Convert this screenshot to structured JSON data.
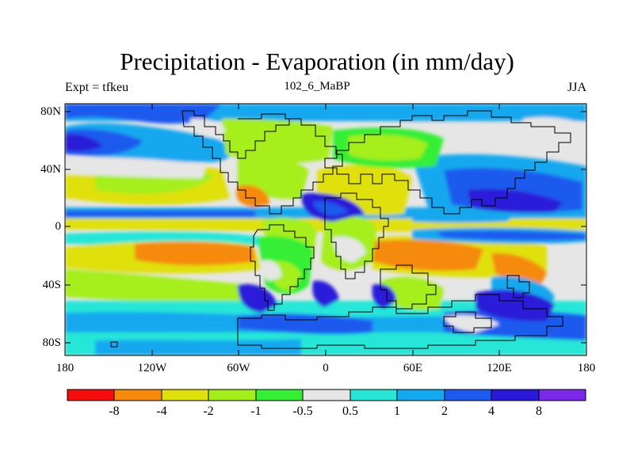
{
  "header": {
    "title": "Precipitation - Evaporation (in mm/day)",
    "left_label": "Expt = tfkeu",
    "center_label": "102_6_MaBP",
    "right_label": "JJA"
  },
  "axes": {
    "y_ticks": [
      "80N",
      "40N",
      "0",
      "40S",
      "80S"
    ],
    "x_ticks": [
      "180",
      "120W",
      "60W",
      "0",
      "60E",
      "120E",
      "180"
    ]
  },
  "colorbar": {
    "labels": [
      "-8",
      "-4",
      "-2",
      "-1",
      "-0.5",
      "0.5",
      "1",
      "2",
      "4",
      "8"
    ],
    "colors": [
      "#f50d0d",
      "#f58a0d",
      "#e0e00d",
      "#a6ee1a",
      "#36ee36",
      "#e6e6e6",
      "#27e6d8",
      "#14a8ee",
      "#1e5aee",
      "#2a1ad8",
      "#7a2ae8"
    ]
  },
  "map": {
    "ocean_base": "#e6e6e6",
    "coast_color": "#000000"
  }
}
